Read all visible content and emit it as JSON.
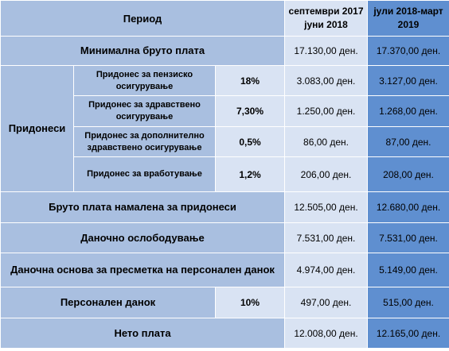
{
  "header": {
    "period": "Период",
    "col_sep": "септември 2017 јуни 2018",
    "col_jul": "јули 2018-март 2019"
  },
  "rows": {
    "min_gross": {
      "label": "Минимална бруто плата",
      "sep": "17.130,00 ден.",
      "jul": "17.370,00 ден."
    },
    "contributions_label": "Придонеси",
    "pension": {
      "label": "Придонес за пензиско осигурување",
      "rate": "18%",
      "sep": "3.083,00 ден.",
      "jul": "3.127,00 ден."
    },
    "health": {
      "label": "Придонес за здравствено осигурување",
      "rate": "7,30%",
      "sep": "1.250,00 ден.",
      "jul": "1.268,00 ден."
    },
    "additional_health": {
      "label": "Придонес за дополнително здравствено осигурување",
      "rate": "0,5%",
      "sep": "86,00 ден.",
      "jul": "87,00 ден."
    },
    "employment": {
      "label": "Придонес за вработување",
      "rate": "1,2%",
      "sep": "206,00 ден.",
      "jul": "208,00 ден."
    },
    "gross_reduced": {
      "label": "Бруто плата намалена за придонеси",
      "sep": "12.505,00 ден.",
      "jul": "12.680,00 ден."
    },
    "tax_exemption": {
      "label": "Даночно ослободување",
      "sep": "7.531,00 ден.",
      "jul": "7.531,00 ден."
    },
    "tax_base": {
      "label": "Даночна основа за пресметка на персонален данок",
      "sep": "4.974,00 ден.",
      "jul": "5.149,00 ден."
    },
    "personal_tax": {
      "label": "Персонален данок",
      "rate": "10%",
      "sep": "497,00 ден.",
      "jul": "515,00 ден."
    },
    "net_salary": {
      "label": "Нето плата",
      "sep": "12.008,00 ден.",
      "jul": "12.165,00 ден."
    }
  }
}
